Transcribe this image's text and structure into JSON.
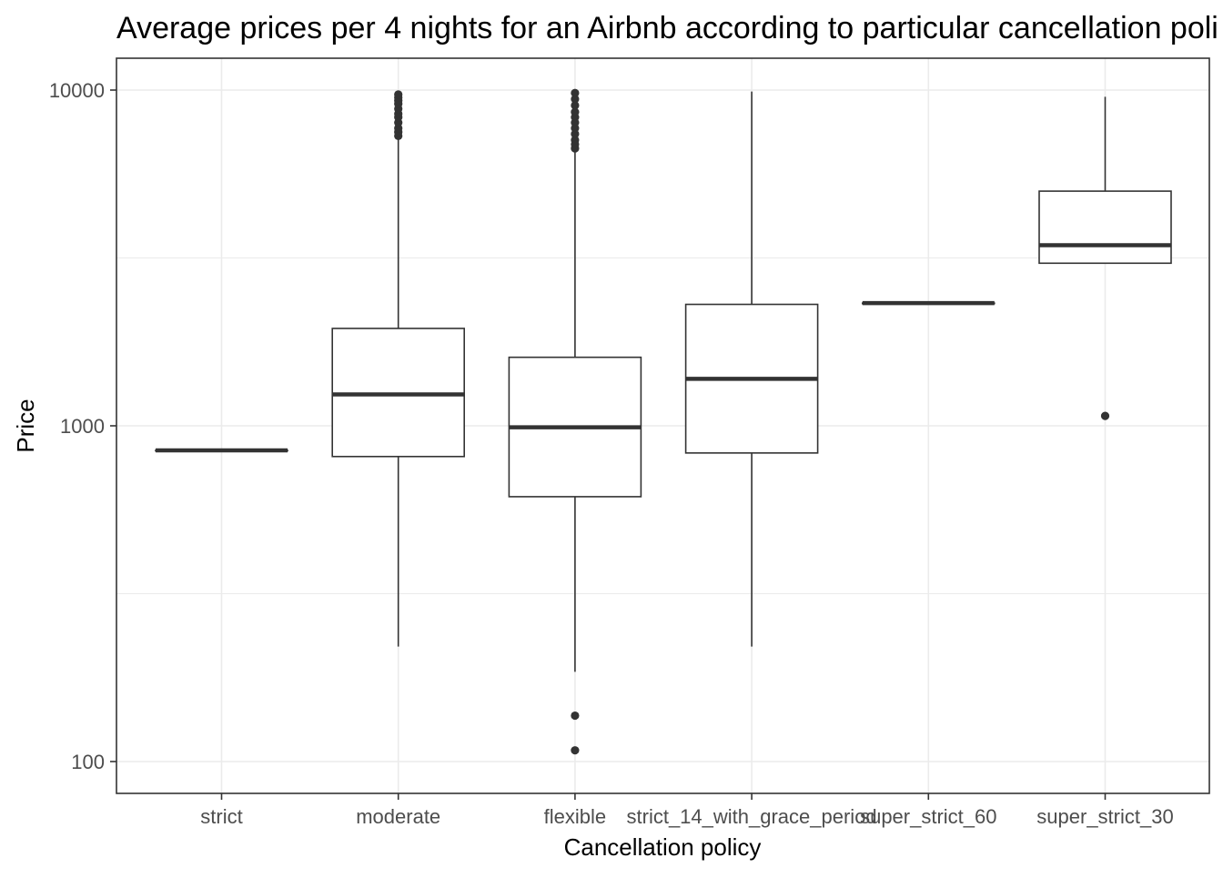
{
  "chart_data": {
    "type": "boxplot",
    "title": "Average prices per 4 nights for an Airbnb according to particular cancellation poli",
    "xlabel": "Cancellation policy",
    "ylabel": "Price",
    "y_scale": "log10",
    "ylim": [
      80,
      12500
    ],
    "y_ticks": [
      100,
      1000,
      10000
    ],
    "y_tick_labels": [
      "100",
      "1000",
      "10000"
    ],
    "grid": true,
    "legend": "none",
    "colors": {
      "box_line": "#333333",
      "grid": "#ebebeb",
      "panel_border": "#333333",
      "tick_text": "#4d4d4d"
    },
    "categories": [
      "strict",
      "moderate",
      "flexible",
      "strict_14_with_grace_period",
      "super_strict_60",
      "super_strict_30"
    ],
    "boxes": [
      {
        "category": "strict",
        "whisker_low": 845,
        "q1": 845,
        "median": 845,
        "q3": 845,
        "whisker_high": 845,
        "outliers": []
      },
      {
        "category": "moderate",
        "whisker_low": 220,
        "q1": 810,
        "median": 1240,
        "q3": 1950,
        "whisker_high": 7200,
        "outliers": [
          7300,
          7500,
          7700,
          8000,
          8300,
          8500,
          8800,
          9100,
          9300,
          9500,
          9700
        ]
      },
      {
        "category": "flexible",
        "whisker_low": 185,
        "q1": 615,
        "median": 990,
        "q3": 1600,
        "whisker_high": 6600,
        "outliers": [
          108,
          137,
          6700,
          6900,
          7100,
          7400,
          7700,
          8000,
          8300,
          8600,
          9000,
          9400,
          9800
        ]
      },
      {
        "category": "strict_14_with_grace_period",
        "whisker_low": 220,
        "q1": 830,
        "median": 1380,
        "q3": 2300,
        "whisker_high": 9900,
        "outliers": []
      },
      {
        "category": "super_strict_60",
        "whisker_low": 2320,
        "q1": 2320,
        "median": 2320,
        "q3": 2320,
        "whisker_high": 2320,
        "outliers": []
      },
      {
        "category": "super_strict_30",
        "whisker_low": 3050,
        "q1": 3050,
        "median": 3450,
        "q3": 5000,
        "whisker_high": 9550,
        "outliers": [
          1070
        ]
      }
    ]
  }
}
